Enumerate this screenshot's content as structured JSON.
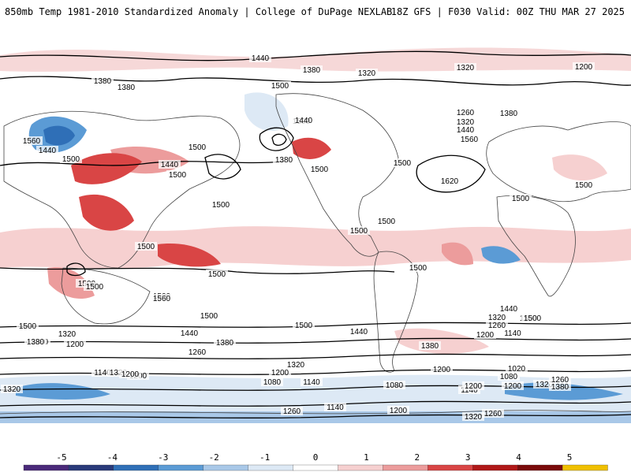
{
  "header": {
    "title": "850mb Temp 1981-2010 Standardized Anomaly | College of DuPage NEXLAB",
    "run_info": "18Z GFS | F030 Valid: 00Z THU MAR 27 2025"
  },
  "colorbar": {
    "ticks": [
      "-5",
      "-4",
      "-3",
      "-2",
      "-1",
      "0",
      "1",
      "2",
      "3",
      "4",
      "5"
    ],
    "colors": [
      "#4a2a7a",
      "#2a3a7a",
      "#2f6fb7",
      "#5b9bd5",
      "#a9c8e8",
      "#dde9f5",
      "#ffffff",
      "#f6d0d0",
      "#ec9c9c",
      "#d94545",
      "#b01818",
      "#7a0a0a",
      "#f0c000"
    ]
  },
  "map_data": {
    "contour_field": "850mb geopotential height (dam)",
    "contour_labels": [
      "1440",
      "1380",
      "1380",
      "1380",
      "1320",
      "1320",
      "1200",
      "1500",
      "1500",
      "1440",
      "1560",
      "1440",
      "1500",
      "1500",
      "1440",
      "1500",
      "1380",
      "1500",
      "1500",
      "1620",
      "1260",
      "1320",
      "1380",
      "1440",
      "1560",
      "1500",
      "1500",
      "1500",
      "1500",
      "1500",
      "1500",
      "1500",
      "1500",
      "1500",
      "1500",
      "1500",
      "1560",
      "1500",
      "1500",
      "1440",
      "1500",
      "1380",
      "1440",
      "1500",
      "1500",
      "1380",
      "1320",
      "1200",
      "1260",
      "1140",
      "1320",
      "1200",
      "1380",
      "1440",
      "1320",
      "1380",
      "1200",
      "1140",
      "1320",
      "1260",
      "1200",
      "1080",
      "1140",
      "1200",
      "1080",
      "1020",
      "1080",
      "1200",
      "1140",
      "1200",
      "1320",
      "1380",
      "1260",
      "1320",
      "1200",
      "1260",
      "1140",
      "1200",
      "1320",
      "1260"
    ]
  }
}
